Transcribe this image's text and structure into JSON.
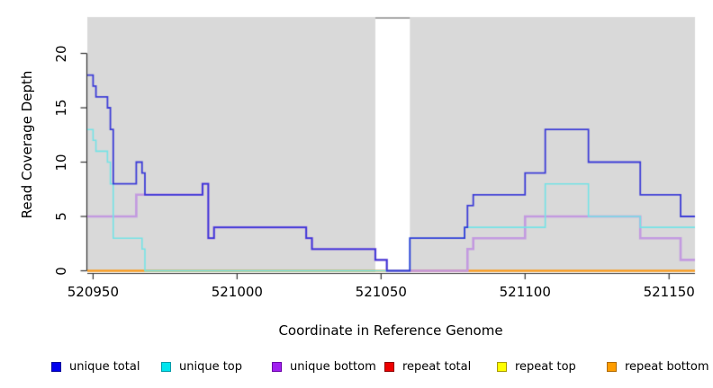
{
  "chart_data": {
    "type": "line",
    "subtype": "step-after-coverage-plot",
    "title": "",
    "xlabel": "Coordinate in Reference Genome",
    "ylabel": "Read Coverage Depth",
    "x_domain": [
      520948,
      521159
    ],
    "y_domain": [
      0,
      23.4
    ],
    "x_ticks": [
      "520950",
      "521000",
      "521050",
      "521100",
      "521150"
    ],
    "x_tick_values": [
      520950,
      521000,
      521050,
      521100,
      521150
    ],
    "y_ticks": [
      "0",
      "5",
      "10",
      "15",
      "20"
    ],
    "y_tick_values": [
      0,
      5,
      10,
      15,
      20
    ],
    "grid": "off",
    "plot_background": "#d9d9d9",
    "gap_region": {
      "x_start": 521048,
      "x_end": 521060,
      "color": "#ffffff",
      "top_border": "#a8a8a8"
    },
    "baseline_overlays": [
      {
        "x_start": 520948,
        "x_end": 520968,
        "value": 0,
        "color": "#ff9d1c"
      },
      {
        "x_start": 520968,
        "x_end": 521048,
        "value": 0,
        "color": "#8fcf8f"
      },
      {
        "x_start": 521060,
        "x_end": 521080,
        "value": 0,
        "color": "#d4404f"
      },
      {
        "x_start": 521080,
        "x_end": 521159,
        "value": 0,
        "color": "#ff9d1c"
      }
    ],
    "series": [
      {
        "name": "repeat total",
        "color": "#d4323c",
        "line_width": 1.4,
        "alpha": 1,
        "points": [
          [
            520948,
            0
          ],
          [
            521159,
            0
          ]
        ]
      },
      {
        "name": "repeat top",
        "color": "#f5e615",
        "line_width": 1.4,
        "alpha": 1,
        "points": [
          [
            520948,
            0
          ],
          [
            521159,
            0
          ]
        ]
      },
      {
        "name": "repeat bottom",
        "color": "#ff9d1c",
        "line_width": 1.4,
        "alpha": 1,
        "points": [
          [
            520948,
            0
          ],
          [
            521159,
            0
          ]
        ]
      },
      {
        "name": "unique bottom",
        "color": "#c39ae0",
        "line_width": 2.6,
        "alpha": 1,
        "points": [
          [
            520948,
            5
          ],
          [
            520965,
            7
          ],
          [
            520988,
            8
          ],
          [
            520990,
            3
          ],
          [
            520992,
            4
          ],
          [
            521024,
            3
          ],
          [
            521026,
            2
          ],
          [
            521048,
            1
          ],
          [
            521052,
            0
          ],
          [
            521080,
            2
          ],
          [
            521082,
            3
          ],
          [
            521100,
            5
          ],
          [
            521140,
            3
          ],
          [
            521154,
            1
          ],
          [
            521159,
            1
          ]
        ]
      },
      {
        "name": "unique top",
        "color": "#76e3e6",
        "line_width": 1.6,
        "alpha": 1,
        "points": [
          [
            520948,
            13
          ],
          [
            520950,
            12
          ],
          [
            520951,
            11
          ],
          [
            520955,
            10
          ],
          [
            520956,
            8
          ],
          [
            520957,
            3
          ],
          [
            520967,
            2
          ],
          [
            520968,
            0
          ],
          [
            521060,
            3
          ],
          [
            521079,
            4
          ],
          [
            521107,
            8
          ],
          [
            521122,
            5
          ],
          [
            521140,
            4
          ],
          [
            521159,
            4
          ]
        ]
      },
      {
        "name": "unique total",
        "color": "#2828d6",
        "line_width": 1.8,
        "alpha": 0.88,
        "points": [
          [
            520948,
            18
          ],
          [
            520950,
            17
          ],
          [
            520951,
            16
          ],
          [
            520955,
            15
          ],
          [
            520956,
            13
          ],
          [
            520957,
            8
          ],
          [
            520965,
            10
          ],
          [
            520967,
            9
          ],
          [
            520968,
            7
          ],
          [
            520988,
            8
          ],
          [
            520990,
            3
          ],
          [
            520992,
            4
          ],
          [
            521024,
            3
          ],
          [
            521026,
            2
          ],
          [
            521048,
            1
          ],
          [
            521052,
            0
          ],
          [
            521060,
            3
          ],
          [
            521079,
            4
          ],
          [
            521080,
            6
          ],
          [
            521082,
            7
          ],
          [
            521100,
            9
          ],
          [
            521107,
            13
          ],
          [
            521122,
            10
          ],
          [
            521140,
            7
          ],
          [
            521154,
            5
          ],
          [
            521159,
            5
          ]
        ]
      }
    ],
    "legend": {
      "position": "bottom",
      "items": [
        {
          "label": "unique total",
          "color": "#0000ee",
          "border": "#000099"
        },
        {
          "label": "unique top",
          "color": "#00e5ee",
          "border": "#009aa8"
        },
        {
          "label": "unique bottom",
          "color": "#a020f0",
          "border": "#6a00a8"
        },
        {
          "label": "repeat total",
          "color": "#ee0000",
          "border": "#8e0000"
        },
        {
          "label": "repeat top",
          "color": "#ffff00",
          "border": "#a89a00"
        },
        {
          "label": "repeat bottom",
          "color": "#ff9d00",
          "border": "#b06a00"
        }
      ]
    },
    "axis_color": "#333333"
  }
}
